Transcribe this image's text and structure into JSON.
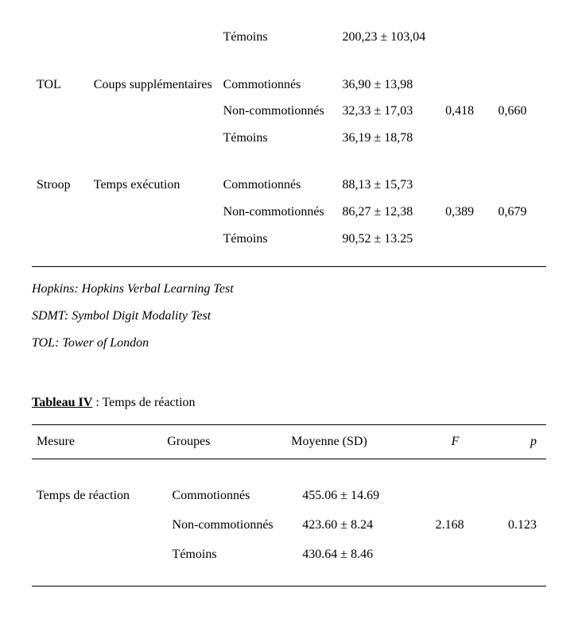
{
  "top_table": {
    "row1": {
      "test": "",
      "measure": "",
      "group": "Témoins",
      "mean": "200,23 ± 103,04",
      "f": "",
      "p": ""
    },
    "row2": {
      "test": "TOL",
      "measure": "Coups supplémentaires",
      "group": "Commotionnés",
      "mean": "36,90 ± 13,98",
      "f": "",
      "p": ""
    },
    "row3": {
      "test": "",
      "measure": "",
      "group": "Non-commotionnés",
      "mean": "32,33 ± 17,03",
      "f": "0,418",
      "p": "0,660"
    },
    "row4": {
      "test": "",
      "measure": "",
      "group": "Témoins",
      "mean": "36,19 ± 18,78",
      "f": "",
      "p": ""
    },
    "row5": {
      "test": "Stroop",
      "measure": "Temps exécution",
      "group": "Commotionnés",
      "mean": "88,13 ± 15,73",
      "f": "",
      "p": ""
    },
    "row6": {
      "test": "",
      "measure": "",
      "group": "Non-commotionnés",
      "mean": "86,27 ± 12,38",
      "f": "0,389",
      "p": "0,679"
    },
    "row7": {
      "test": "",
      "measure": "",
      "group": "Témoins",
      "mean": "90,52 ± 13.25",
      "f": "",
      "p": ""
    }
  },
  "notes": {
    "n1": "Hopkins: Hopkins Verbal Learning Test",
    "n2": "SDMT: Symbol Digit Modality Test",
    "n3": "TOL: Tower of London"
  },
  "tableau4": {
    "label": "Tableau IV",
    "sep": " : ",
    "title": "Temps de réaction",
    "headers": {
      "mesure": "Mesure",
      "groupes": "Groupes",
      "moyenne": "Moyenne (SD)",
      "f": "F",
      "p": "p"
    },
    "r1": {
      "mesure": "Temps de réaction",
      "group": "Commotionnés",
      "mean": "455.06 ± 14.69",
      "f": "",
      "p": ""
    },
    "r2": {
      "mesure": "",
      "group": "Non-commotionnés",
      "mean": "423.60 ± 8.24",
      "f": "2.168",
      "p": "0.123"
    },
    "r3": {
      "mesure": "",
      "group": "Témoins",
      "mean": "430.64 ± 8.46",
      "f": "",
      "p": ""
    }
  }
}
